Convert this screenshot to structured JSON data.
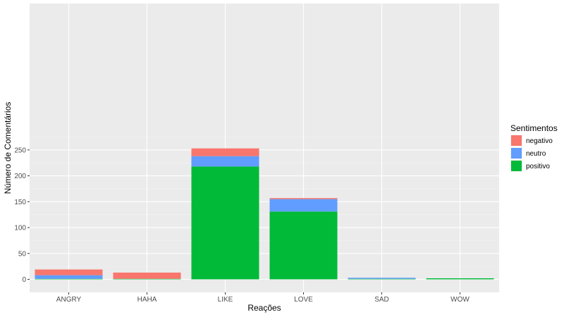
{
  "chart_data": {
    "type": "bar",
    "stacked": true,
    "xlabel": "Reações",
    "ylabel": "Número de Comentários",
    "ylim": [
      0,
      262
    ],
    "yticks": [
      0,
      50,
      100,
      150,
      200,
      250
    ],
    "grid": true,
    "legend": {
      "title": "Sentimentos",
      "placement": "right"
    },
    "categories": [
      "ANGRY",
      "HAHA",
      "LIKE",
      "LOVE",
      "SAD",
      "WOW"
    ],
    "series": [
      {
        "name": "negativo",
        "color": "#F8766D",
        "values": [
          11,
          12,
          15,
          2,
          0,
          0
        ]
      },
      {
        "name": "neutro",
        "color": "#619CFF",
        "values": [
          7,
          0,
          20,
          24,
          2,
          0
        ]
      },
      {
        "name": "positivo",
        "color": "#00BA38",
        "values": [
          1,
          1,
          218,
          131,
          1,
          2
        ]
      }
    ],
    "stack_order_bottom_to_top": [
      "positivo",
      "neutro",
      "negativo"
    ]
  }
}
